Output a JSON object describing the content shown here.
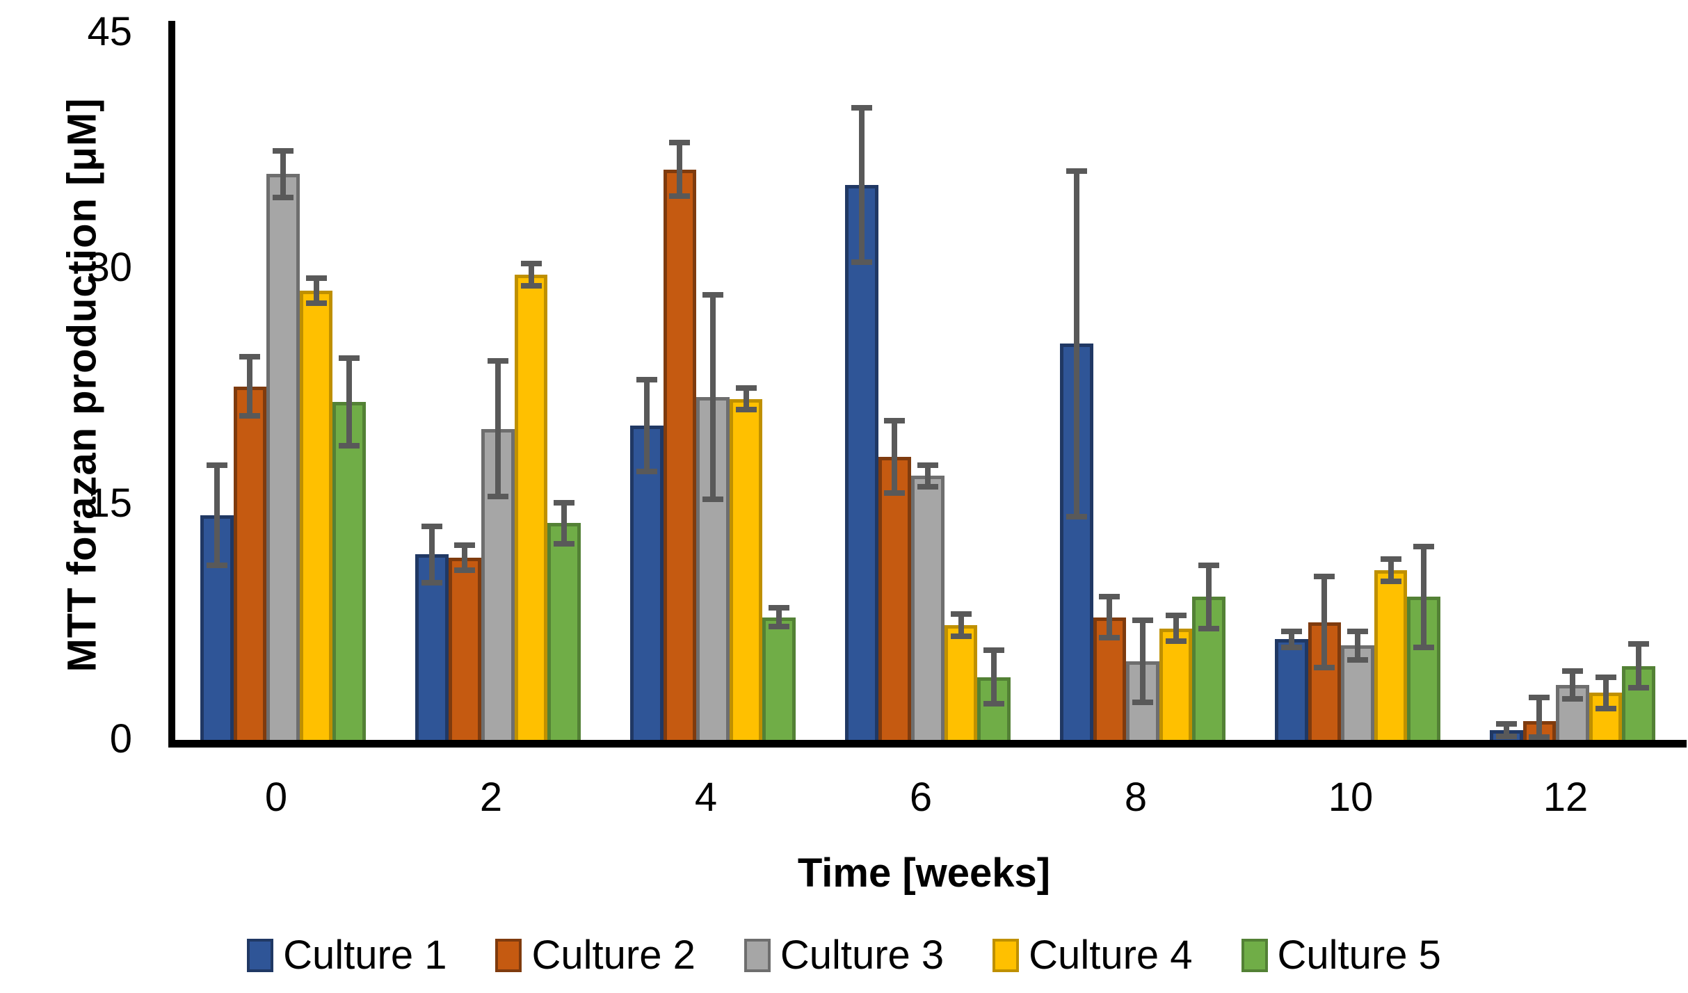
{
  "chart_data": {
    "type": "bar",
    "title": "",
    "xlabel": "Time [weeks]",
    "ylabel": "MTT forazan production [μM]",
    "categories": [
      "0",
      "2",
      "4",
      "6",
      "8",
      "10",
      "12"
    ],
    "yticks": [
      0,
      15,
      30,
      45
    ],
    "ylim": [
      0,
      45
    ],
    "grid": false,
    "legend_position": "bottom",
    "error_bars": true,
    "error_bar_color": "#595959",
    "axis_color": "#000000",
    "series": [
      {
        "name": "Culture 1",
        "color": "#2F5597",
        "border_color": "#203864",
        "values": [
          14.3,
          11.8,
          20.0,
          35.3,
          25.2,
          6.4,
          0.6
        ],
        "errors": [
          3.2,
          1.8,
          2.9,
          4.9,
          11.0,
          0.5,
          0.4
        ]
      },
      {
        "name": "Culture 2",
        "color": "#C55A11",
        "border_color": "#7F3B0E",
        "values": [
          22.5,
          11.6,
          36.3,
          18.0,
          7.8,
          7.5,
          1.2
        ],
        "errors": [
          1.9,
          0.8,
          1.7,
          2.3,
          1.3,
          2.9,
          1.5
        ]
      },
      {
        "name": "Culture 3",
        "color": "#A6A6A6",
        "border_color": "#6E6E6E",
        "values": [
          36.0,
          19.8,
          21.8,
          16.8,
          5.0,
          6.0,
          3.5
        ],
        "errors": [
          1.5,
          4.3,
          6.5,
          0.7,
          2.6,
          0.9,
          0.9
        ]
      },
      {
        "name": "Culture 4",
        "color": "#FFC000",
        "border_color": "#BF9000",
        "values": [
          28.6,
          29.6,
          21.7,
          7.3,
          7.1,
          10.8,
          3.0
        ],
        "errors": [
          0.8,
          0.7,
          0.7,
          0.7,
          0.8,
          0.7,
          1.0
        ]
      },
      {
        "name": "Culture 5",
        "color": "#70AD47",
        "border_color": "#538135",
        "values": [
          21.5,
          13.8,
          7.8,
          4.0,
          9.1,
          9.1,
          4.7
        ],
        "errors": [
          2.8,
          1.3,
          0.6,
          1.7,
          2.0,
          3.2,
          1.4
        ]
      }
    ]
  }
}
